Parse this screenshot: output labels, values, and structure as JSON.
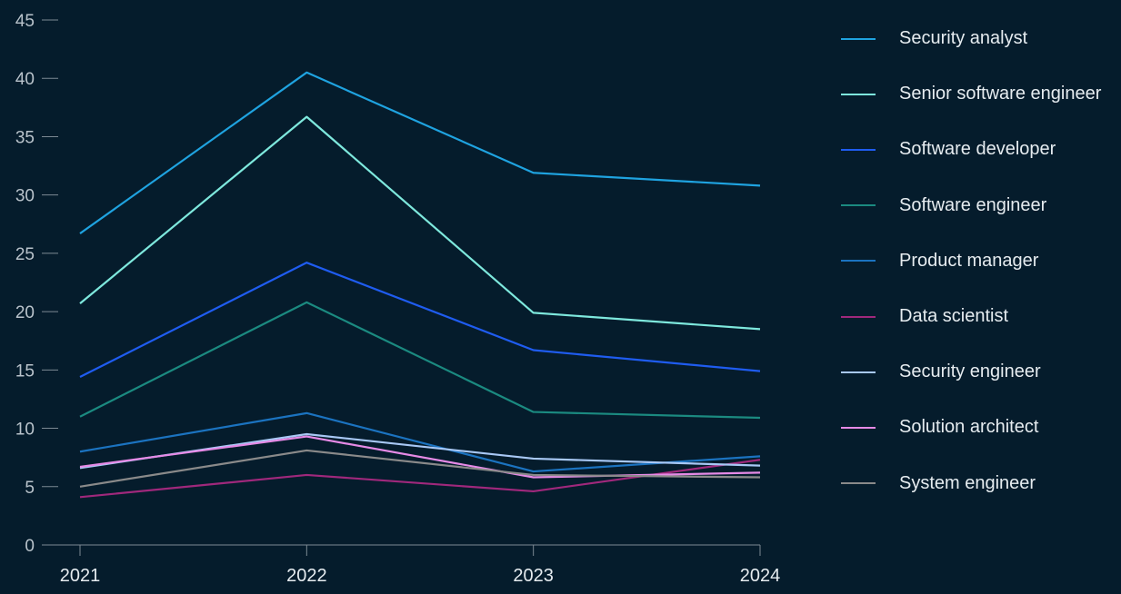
{
  "chart_data": {
    "type": "line",
    "categories": [
      "2021",
      "2022",
      "2023",
      "2024"
    ],
    "ylim": [
      0,
      45
    ],
    "yticks": [
      0,
      5,
      10,
      15,
      20,
      25,
      30,
      35,
      40,
      45
    ],
    "grid": false,
    "legend_position": "right",
    "series": [
      {
        "name": "Security analyst",
        "color": "#1fa3e0",
        "values": [
          26.7,
          40.5,
          31.9,
          30.8
        ]
      },
      {
        "name": "Senior software engineer",
        "color": "#7ee8dd",
        "values": [
          20.7,
          36.7,
          19.9,
          18.5
        ]
      },
      {
        "name": "Software developer",
        "color": "#1f5cf0",
        "values": [
          14.4,
          24.2,
          16.7,
          14.9
        ]
      },
      {
        "name": "Software engineer",
        "color": "#1b8a80",
        "values": [
          11.0,
          20.8,
          11.4,
          10.9
        ]
      },
      {
        "name": "Product manager",
        "color": "#1b73c0",
        "values": [
          8.0,
          11.3,
          6.3,
          7.6
        ]
      },
      {
        "name": "Data scientist",
        "color": "#a0287c",
        "values": [
          4.1,
          6.0,
          4.6,
          7.3
        ]
      },
      {
        "name": "Security engineer",
        "color": "#a8c8f5",
        "values": [
          6.6,
          9.5,
          7.4,
          6.8
        ]
      },
      {
        "name": "Solution architect",
        "color": "#e68ae6",
        "values": [
          6.7,
          9.3,
          5.8,
          6.2
        ]
      },
      {
        "name": "System engineer",
        "color": "#8a8a8a",
        "values": [
          5.0,
          8.1,
          6.0,
          5.8
        ]
      }
    ]
  }
}
